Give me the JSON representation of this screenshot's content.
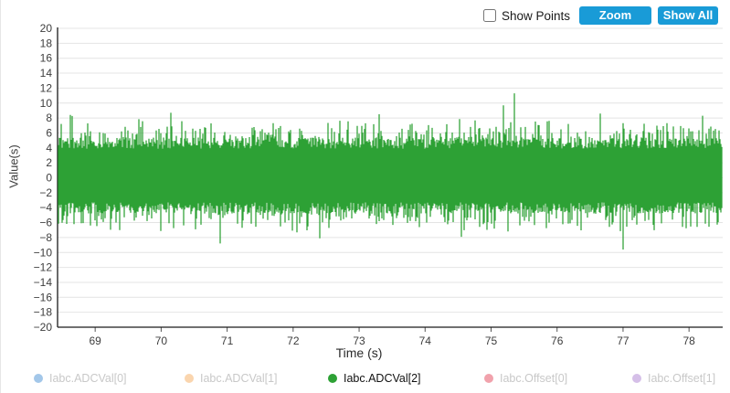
{
  "toolbar": {
    "show_points_label": "Show Points",
    "show_points_checked": false,
    "zoom_label": "Zoom",
    "show_all_label": "Show All",
    "button_color": "#199bd7"
  },
  "chart_data": {
    "type": "line",
    "title": "",
    "xlabel": "Time (s)",
    "ylabel": "Value(s)",
    "xlim": [
      68.43,
      78.51
    ],
    "ylim": [
      -20,
      20
    ],
    "x_ticks": [
      69,
      70,
      71,
      72,
      73,
      74,
      75,
      76,
      77,
      78
    ],
    "y_tick_step": 2,
    "grid": "horizontal",
    "legend_position": "bottom",
    "series": [
      {
        "name": "Iabc.ADCVal[0]",
        "color": "#a3c7e9",
        "visible": false
      },
      {
        "name": "Iabc.ADCVal[1]",
        "color": "#fad5ae",
        "visible": false
      },
      {
        "name": "Iabc.ADCVal[2]",
        "color": "#2da135",
        "visible": true,
        "noise_model": {
          "description": "dense zero-mean ADC noise band",
          "core_band": [
            -4,
            5
          ],
          "typical_extremes": [
            -7.5,
            8.5
          ],
          "seed": 11
        },
        "notable_points": [
          {
            "x": 75.35,
            "y": 11.3
          },
          {
            "x": 75.18,
            "y": 9.7
          },
          {
            "x": 70.15,
            "y": 8.7
          },
          {
            "x": 68.62,
            "y": 8.4
          },
          {
            "x": 73.3,
            "y": 8.5
          },
          {
            "x": 76.65,
            "y": 8.6
          },
          {
            "x": 78.2,
            "y": 8.3
          },
          {
            "x": 77.0,
            "y": -9.6
          },
          {
            "x": 70.9,
            "y": -8.8
          },
          {
            "x": 72.4,
            "y": -8.1
          },
          {
            "x": 74.55,
            "y": -7.9
          }
        ]
      },
      {
        "name": "Iabc.Offset[0]",
        "color": "#f1a2ac",
        "visible": false
      },
      {
        "name": "Iabc.Offset[1]",
        "color": "#d5bfe8",
        "visible": false
      }
    ]
  }
}
